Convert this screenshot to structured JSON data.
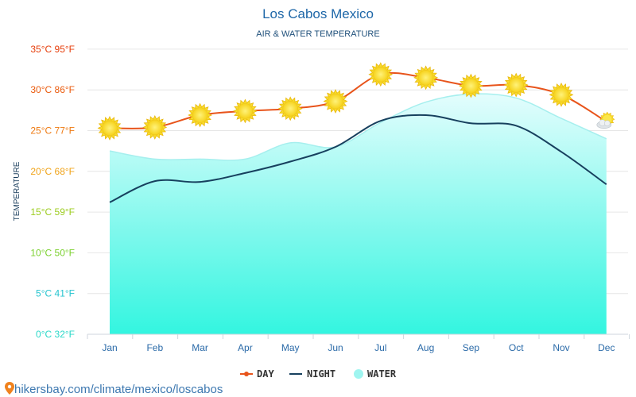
{
  "chart_data": {
    "type": "line",
    "title": "Los Cabos Mexico",
    "subtitle": "AIR & WATER TEMPERATURE",
    "ylabel": "TEMPERATURE",
    "categories": [
      "Jan",
      "Feb",
      "Mar",
      "Apr",
      "May",
      "Jun",
      "Jul",
      "Aug",
      "Sep",
      "Oct",
      "Nov",
      "Dec"
    ],
    "ylim": [
      0,
      35
    ],
    "yticks": [
      {
        "value": 0,
        "label": "0°C 32°F",
        "color": "#2ad8c8"
      },
      {
        "value": 5,
        "label": "5°C 41°F",
        "color": "#25c4cf"
      },
      {
        "value": 10,
        "label": "10°C 50°F",
        "color": "#7bd02e"
      },
      {
        "value": 15,
        "label": "15°C 59°F",
        "color": "#9ccc1e"
      },
      {
        "value": 20,
        "label": "20°C 68°F",
        "color": "#f0a318"
      },
      {
        "value": 25,
        "label": "25°C 77°F",
        "color": "#ee7a12"
      },
      {
        "value": 30,
        "label": "30°C 86°F",
        "color": "#ea5a0c"
      },
      {
        "value": 35,
        "label": "35°C 95°F",
        "color": "#e63d0a"
      }
    ],
    "grid": true,
    "legend_position": "bottom-center",
    "series": [
      {
        "name": "DAY",
        "color": "#e8541b",
        "values": [
          25.3,
          25.4,
          26.9,
          27.4,
          27.7,
          28.6,
          31.9,
          31.5,
          30.5,
          30.6,
          29.4,
          26.1
        ]
      },
      {
        "name": "NIGHT",
        "color": "#17405e",
        "values": [
          16.2,
          18.8,
          18.7,
          19.8,
          21.2,
          23.0,
          26.2,
          26.9,
          25.9,
          25.6,
          22.4,
          18.4
        ]
      },
      {
        "name": "WATER",
        "color": "#9ff5f0",
        "values": [
          22.5,
          21.5,
          21.5,
          21.5,
          23.5,
          23.0,
          26.0,
          28.5,
          29.5,
          29.0,
          26.5,
          24.0
        ]
      }
    ],
    "day_icons": [
      "sun",
      "sun",
      "sun",
      "sun",
      "sun",
      "sun",
      "sun",
      "sun",
      "sun",
      "sun",
      "sun",
      "partly-cloudy"
    ]
  },
  "footer": {
    "link_text": "hikersbay.com/climate/mexico/loscabos",
    "icon": "map-pin-icon"
  }
}
